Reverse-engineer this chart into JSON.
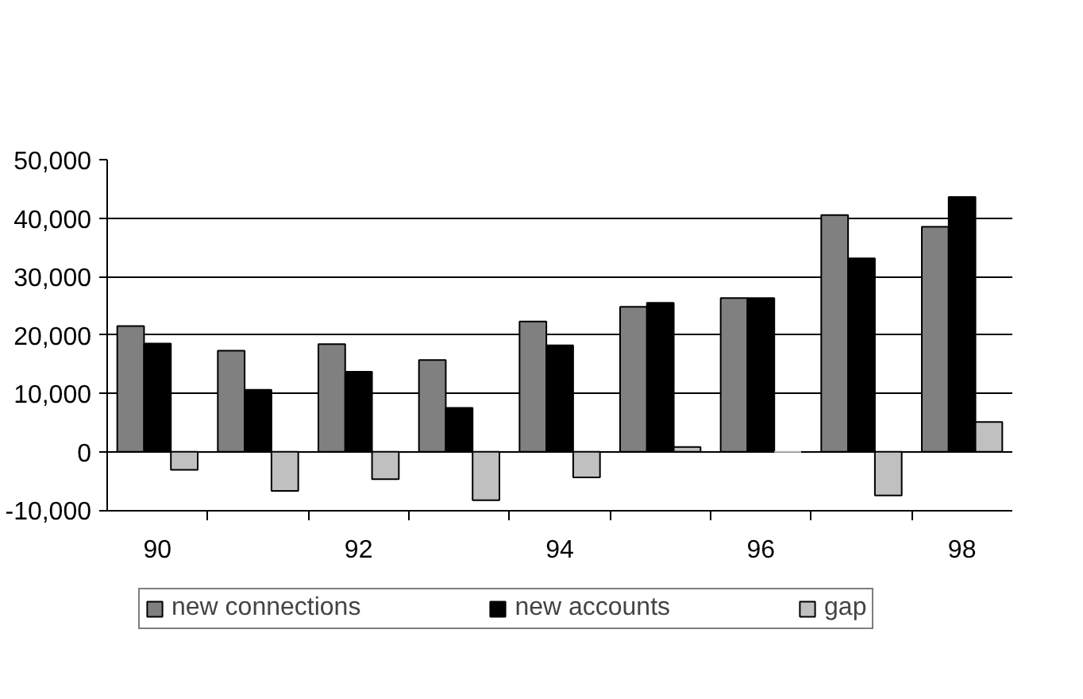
{
  "chart_data": {
    "type": "bar",
    "categories": [
      "90",
      null,
      "92",
      null,
      "94",
      null,
      "96",
      null,
      "98"
    ],
    "series": [
      {
        "name": "new connections",
        "color": "#808080",
        "values": [
          21500,
          17300,
          18400,
          15700,
          22300,
          24800,
          26300,
          40500,
          38500
        ]
      },
      {
        "name": "new accounts",
        "color": "#000000",
        "values": [
          18500,
          10600,
          13700,
          7500,
          18200,
          25500,
          26300,
          33100,
          43600
        ]
      },
      {
        "name": "gap",
        "color": "#c0c0c0",
        "values": [
          -3100,
          -6700,
          -4700,
          -8300,
          -4400,
          800,
          0,
          -7500,
          5100
        ]
      }
    ],
    "ylim": [
      -10000,
      50000
    ],
    "yticks": [
      {
        "value": -10000,
        "label": "-10,000"
      },
      0,
      {
        "value": 10000,
        "label": "10,000"
      },
      {
        "value": 20000,
        "label": "20,000"
      },
      {
        "value": 30000,
        "label": "30,000"
      },
      {
        "value": 40000,
        "label": "40,000"
      },
      {
        "value": 50000,
        "label": "50,000"
      }
    ],
    "grid": "y",
    "legend": "bottom"
  }
}
